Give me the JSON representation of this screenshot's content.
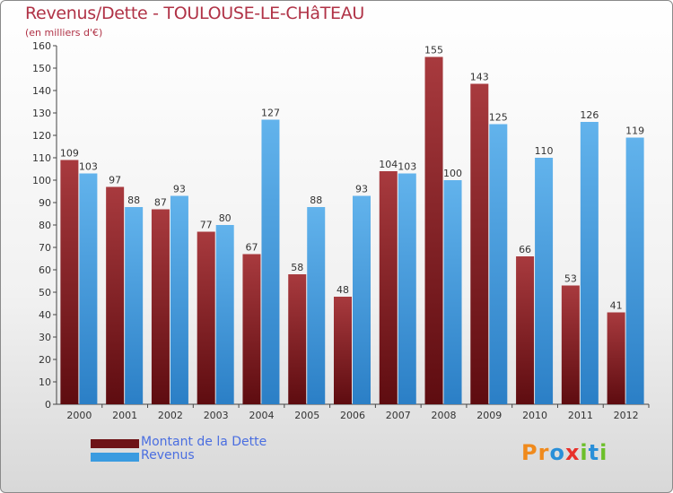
{
  "title": "Revenus/Dette - TOULOUSE-LE-CHâTEAU",
  "subtitle": "(en milliers d'€)",
  "colors": {
    "dette": "#6e1216",
    "dette_light": "#a83a3e",
    "revenus": "#2f8fd9",
    "revenus_light": "#62b3ec",
    "title": "#b03246",
    "legend_text": "#4a6ee0"
  },
  "legend": [
    {
      "label": "Montant de la Dette",
      "color": "#6e1216"
    },
    {
      "label": "Revenus",
      "color": "#3a9be0"
    }
  ],
  "logo": {
    "text": "Proxiti",
    "letters": [
      "P",
      "r",
      "o",
      "x",
      "i",
      "t",
      "i"
    ],
    "colors": [
      "#f08a1c",
      "#f08a1c",
      "#2a8fd8",
      "#e8302a",
      "#6cbf2a",
      "#2a8fd8",
      "#6cbf2a"
    ]
  },
  "chart_data": {
    "type": "bar",
    "categories": [
      "2000",
      "2001",
      "2002",
      "2003",
      "2004",
      "2005",
      "2006",
      "2007",
      "2008",
      "2009",
      "2010",
      "2011",
      "2012"
    ],
    "series": [
      {
        "name": "Montant de la Dette",
        "values": [
          109,
          97,
          87,
          77,
          67,
          58,
          48,
          104,
          155,
          143,
          66,
          53,
          41
        ]
      },
      {
        "name": "Revenus",
        "values": [
          103,
          88,
          93,
          80,
          127,
          88,
          93,
          103,
          100,
          125,
          110,
          126,
          119
        ]
      }
    ],
    "yticks": [
      0,
      10,
      20,
      30,
      40,
      50,
      60,
      70,
      80,
      90,
      100,
      110,
      120,
      130,
      140,
      150,
      160
    ],
    "ylim": [
      0,
      160
    ],
    "grid": false,
    "legend_position": "bottom-left"
  }
}
